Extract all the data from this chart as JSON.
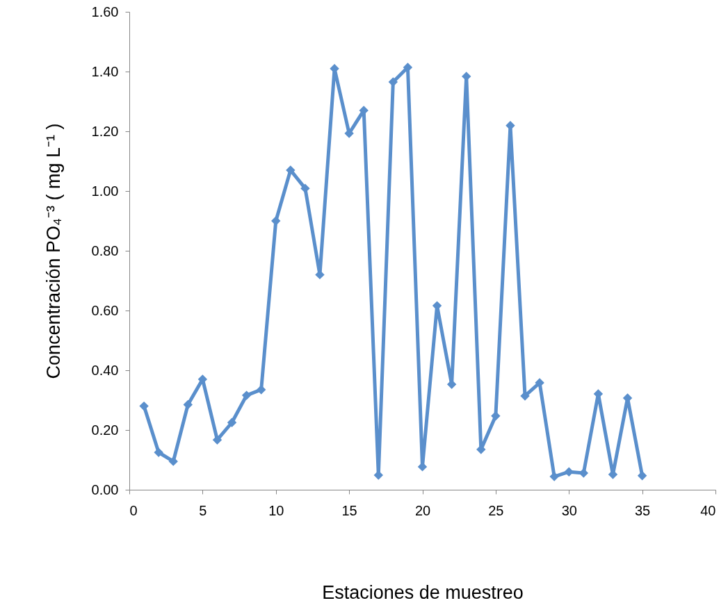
{
  "chart_data": {
    "type": "line",
    "xlabel": "Estaciones de muestreo",
    "ylabel": "Concentración PO₄⁻³ ( mg L⁻¹ )",
    "x": [
      1,
      2,
      3,
      4,
      5,
      6,
      7,
      8,
      9,
      10,
      11,
      12,
      13,
      14,
      15,
      16,
      17,
      18,
      19,
      20,
      21,
      22,
      23,
      24,
      25,
      26,
      27,
      28,
      29,
      30,
      31,
      32,
      33,
      34,
      35
    ],
    "series": [
      {
        "color": "#5a8fcc",
        "values": [
          0.28,
          0.125,
          0.095,
          0.285,
          0.37,
          0.167,
          0.225,
          0.316,
          0.335,
          0.9,
          1.07,
          1.009,
          0.72,
          1.41,
          1.193,
          1.27,
          0.049,
          1.365,
          1.414,
          0.077,
          0.616,
          0.353,
          1.384,
          0.135,
          0.247,
          1.219,
          0.314,
          0.358,
          0.044,
          0.06,
          0.056,
          0.321,
          0.051,
          0.307,
          0.047
        ]
      }
    ],
    "xlim": [
      0,
      40
    ],
    "xticks": [
      0,
      5,
      10,
      15,
      20,
      25,
      30,
      35,
      40
    ],
    "ylim": [
      0,
      1.6
    ],
    "yticks": [
      {
        "value": 0,
        "label": "0.00"
      },
      {
        "value": 0.2,
        "label": "0.20"
      },
      {
        "value": 0.4,
        "label": "0.40"
      },
      {
        "value": 0.6,
        "label": "0.60"
      },
      {
        "value": 0.8,
        "label": "0.80"
      },
      {
        "value": 1.0,
        "label": "1.00"
      },
      {
        "value": 1.2,
        "label": "1.20"
      },
      {
        "value": 1.4,
        "label": "1.40"
      },
      {
        "value": 1.6,
        "label": "1.60"
      }
    ],
    "grid": false,
    "marker": "diamond",
    "line_style": "solid"
  }
}
